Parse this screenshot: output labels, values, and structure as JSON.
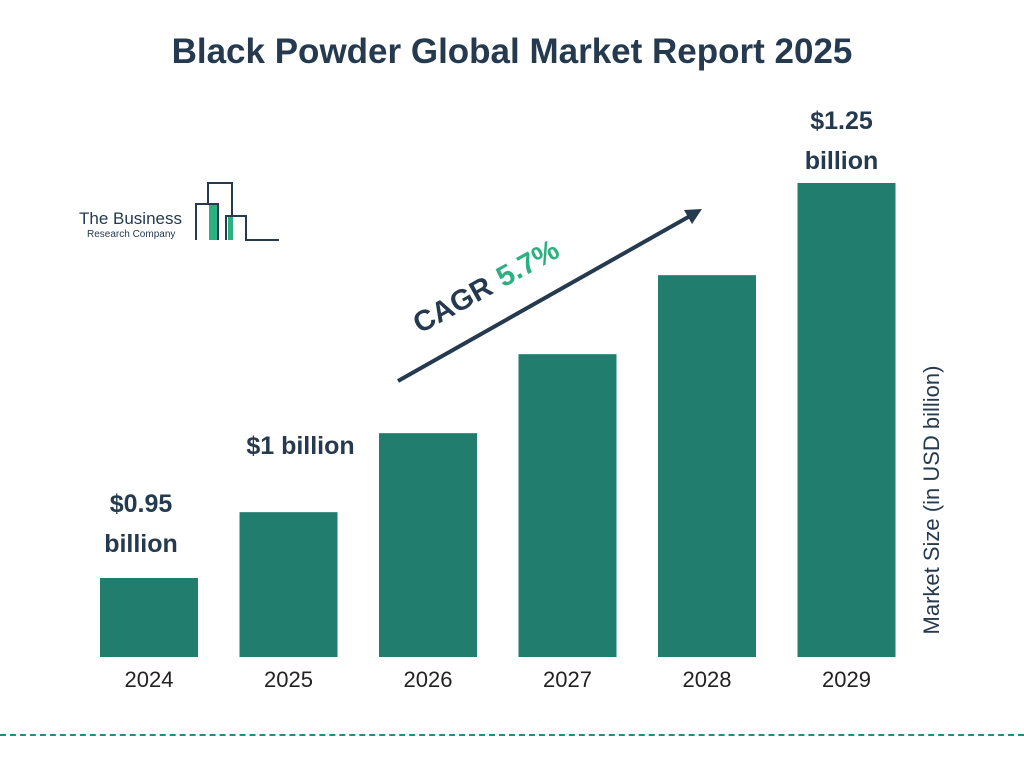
{
  "chart_data": {
    "type": "bar",
    "title": "Black Powder Global Market Report 2025",
    "ylabel": "Market Size (in USD billion)",
    "categories": [
      "2024",
      "2025",
      "2026",
      "2027",
      "2028",
      "2029"
    ],
    "values": [
      0.95,
      1.0,
      1.06,
      1.12,
      1.18,
      1.25
    ],
    "data_labels": [
      [
        "$0.95",
        "billion"
      ],
      [
        "$1 billion"
      ],
      [],
      [],
      [],
      [
        "$1.25",
        "billion"
      ]
    ],
    "ylim": [
      0.89,
      1.25
    ],
    "grid": false,
    "bar_color": "#217d6d",
    "annotation": {
      "label": "CAGR",
      "value": "5.7%",
      "value_color": "#2bb07f"
    }
  },
  "logo": {
    "line1": "The Business",
    "line2": "Research Company"
  }
}
